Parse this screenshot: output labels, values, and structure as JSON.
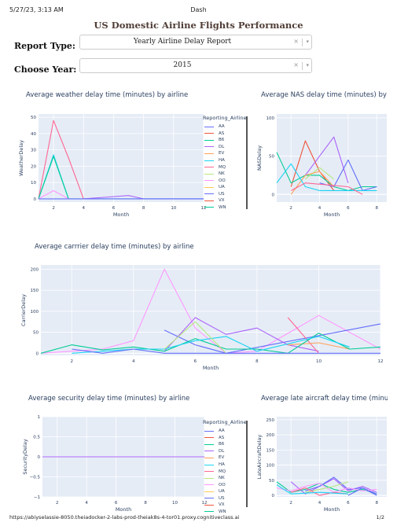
{
  "browser": {
    "timestamp": "5/27/23, 3:13 AM",
    "tab_title": "Dash",
    "footer_url": "https://abiyselassie-8050.theiadocker-2-labs-prod-theiak8s-4-tor01.proxy.cognitiveclass.ai",
    "page_indicator": "1/2"
  },
  "page": {
    "title": "US Domestic Airline Flights Performance",
    "report_type_label": "Report Type:",
    "report_type_value": "Yearly Airline Delay Report",
    "year_label": "Choose Year:",
    "year_value": "2015",
    "clear_glyph": "×",
    "caret_glyph": "▾"
  },
  "colors": {
    "plot_bg": "#e5ecf6",
    "grid": "#ffffff",
    "axis_text": "#2a3f5f",
    "title": "#503d36"
  },
  "legend": {
    "title": "Reporting_Airline",
    "airlines": [
      {
        "name": "AA",
        "color": "#636efa"
      },
      {
        "name": "AS",
        "color": "#ef553b"
      },
      {
        "name": "B6",
        "color": "#00cc96"
      },
      {
        "name": "DL",
        "color": "#ab63fa"
      },
      {
        "name": "EV",
        "color": "#ffa15a"
      },
      {
        "name": "HA",
        "color": "#19d3f3"
      },
      {
        "name": "MQ",
        "color": "#ff6692"
      },
      {
        "name": "NK",
        "color": "#b6e880"
      },
      {
        "name": "OO",
        "color": "#ff97ff"
      },
      {
        "name": "UA",
        "color": "#fecb52"
      },
      {
        "name": "US",
        "color": "#636efa"
      },
      {
        "name": "VX",
        "color": "#ef553b"
      },
      {
        "name": "WN",
        "color": "#00cc96"
      }
    ]
  },
  "chart_data": [
    {
      "type": "line",
      "title": "Average weather delay time (minutes) by airline",
      "xlabel": "Month",
      "ylabel": "WeatherDelay",
      "xlim": [
        1,
        12
      ],
      "ylim": [
        -2,
        52
      ],
      "xticks": [
        2,
        4,
        6,
        8,
        10,
        12
      ],
      "yticks": [
        0,
        10,
        20,
        30,
        40,
        50
      ],
      "series": [
        {
          "name": "MQ",
          "color": "#ff6692",
          "x": [
            1,
            2,
            3,
            4
          ],
          "y": [
            0,
            48,
            25,
            0
          ]
        },
        {
          "name": "HA",
          "color": "#19d3f3",
          "x": [
            1,
            2,
            3
          ],
          "y": [
            0,
            27,
            0
          ]
        },
        {
          "name": "B6",
          "color": "#00cc96",
          "x": [
            1,
            2,
            3,
            4,
            12
          ],
          "y": [
            0,
            26,
            0,
            0,
            0
          ]
        },
        {
          "name": "OO",
          "color": "#ff97ff",
          "x": [
            1,
            2,
            3
          ],
          "y": [
            0,
            5,
            0
          ]
        },
        {
          "name": "DL",
          "color": "#ab63fa",
          "x": [
            4,
            7,
            8,
            12
          ],
          "y": [
            0,
            2,
            0,
            0
          ]
        },
        {
          "name": "AA",
          "color": "#636efa",
          "x": [
            1,
            4,
            12
          ],
          "y": [
            0,
            0,
            0
          ]
        }
      ]
    },
    {
      "type": "line",
      "title": "Average NAS delay time (minutes) by airline",
      "xlabel": "Month",
      "ylabel": "NASDelay",
      "xlim": [
        1,
        8.7
      ],
      "ylim": [
        -10,
        105
      ],
      "xticks": [
        2,
        4,
        6,
        8
      ],
      "yticks": [
        0,
        50,
        100
      ],
      "series": [
        {
          "name": "AS",
          "color": "#ef553b",
          "x": [
            2,
            3,
            4,
            5
          ],
          "y": [
            10,
            70,
            30,
            5
          ]
        },
        {
          "name": "B6",
          "color": "#00cc96",
          "x": [
            1,
            2,
            3,
            4,
            5,
            6,
            7,
            8
          ],
          "y": [
            55,
            15,
            25,
            25,
            10,
            5,
            10,
            10
          ]
        },
        {
          "name": "DL",
          "color": "#ab63fa",
          "x": [
            3,
            4,
            5,
            6
          ],
          "y": [
            25,
            50,
            75,
            15
          ]
        },
        {
          "name": "NK",
          "color": "#b6e880",
          "x": [
            3,
            4,
            5
          ],
          "y": [
            20,
            35,
            20
          ]
        },
        {
          "name": "AA",
          "color": "#636efa",
          "x": [
            4,
            5,
            6,
            7,
            8
          ],
          "y": [
            15,
            10,
            45,
            5,
            10
          ]
        },
        {
          "name": "EV",
          "color": "#ffa15a",
          "x": [
            2,
            3,
            4,
            5
          ],
          "y": [
            0,
            25,
            30,
            10
          ]
        },
        {
          "name": "HA",
          "color": "#19d3f3",
          "x": [
            1,
            2,
            3,
            4,
            6,
            8
          ],
          "y": [
            15,
            40,
            10,
            5,
            5,
            5
          ]
        },
        {
          "name": "MQ",
          "color": "#ff6692",
          "x": [
            2,
            3,
            6,
            7
          ],
          "y": [
            5,
            15,
            10,
            0
          ]
        }
      ]
    },
    {
      "type": "line",
      "title": "Average carrrier delay time (minutes) by airline",
      "xlabel": "Month",
      "ylabel": "CarrierDelay",
      "xlim": [
        1,
        12
      ],
      "ylim": [
        -5,
        210
      ],
      "xticks": [
        2,
        4,
        6,
        8,
        10,
        12
      ],
      "yticks": [
        0,
        50,
        100,
        150,
        200
      ],
      "series": [
        {
          "name": "OO",
          "color": "#ff97ff",
          "x": [
            1,
            3,
            4,
            5,
            6,
            7,
            8,
            10,
            11,
            12
          ],
          "y": [
            0,
            10,
            30,
            200,
            60,
            0,
            5,
            90,
            50,
            10
          ]
        },
        {
          "name": "AA",
          "color": "#636efa",
          "x": [
            5,
            6,
            7,
            12
          ],
          "y": [
            55,
            20,
            0,
            70
          ]
        },
        {
          "name": "DL",
          "color": "#ab63fa",
          "x": [
            5,
            6,
            7,
            8,
            9,
            10
          ],
          "y": [
            5,
            85,
            45,
            60,
            20,
            5
          ]
        },
        {
          "name": "MQ",
          "color": "#ff6692",
          "x": [
            9,
            10
          ],
          "y": [
            85,
            0
          ]
        },
        {
          "name": "EV",
          "color": "#ffa15a",
          "x": [
            9,
            10,
            11
          ],
          "y": [
            20,
            25,
            10
          ]
        },
        {
          "name": "B6",
          "color": "#00cc96",
          "x": [
            1,
            2,
            3,
            4,
            5,
            6,
            7,
            8,
            9,
            10,
            11,
            12
          ],
          "y": [
            0,
            20,
            8,
            15,
            5,
            35,
            10,
            10,
            0,
            48,
            10,
            15
          ]
        },
        {
          "name": "HA",
          "color": "#19d3f3",
          "x": [
            2,
            3,
            4,
            5,
            6,
            7,
            8,
            10,
            11
          ],
          "y": [
            0,
            5,
            10,
            10,
            30,
            40,
            5,
            40,
            15
          ]
        },
        {
          "name": "NK",
          "color": "#b6e880",
          "x": [
            5,
            6,
            7
          ],
          "y": [
            10,
            75,
            0
          ]
        },
        {
          "name": "US",
          "color": "#636efa",
          "x": [
            2,
            3,
            4,
            5,
            9,
            12
          ],
          "y": [
            10,
            0,
            10,
            0,
            0,
            0
          ]
        }
      ]
    },
    {
      "type": "line",
      "title": "Average security delay time (minutes) by airline",
      "xlabel": "Month",
      "ylabel": "SecurityDelay",
      "xlim": [
        1,
        12
      ],
      "ylim": [
        -1,
        1
      ],
      "xticks": [
        2,
        4,
        6,
        8,
        10,
        12
      ],
      "yticks": [
        1,
        0.5,
        0,
        -0.5,
        -1
      ],
      "series": [
        {
          "name": "B6",
          "color": "#00cc96",
          "x": [
            1,
            4,
            7,
            12
          ],
          "y": [
            0,
            0,
            0,
            0
          ]
        },
        {
          "name": "AA",
          "color": "#636efa",
          "x": [
            1,
            12
          ],
          "y": [
            0,
            0
          ]
        },
        {
          "name": "DL",
          "color": "#ab63fa",
          "x": [
            1,
            12
          ],
          "y": [
            0,
            0
          ]
        }
      ]
    },
    {
      "type": "line",
      "title": "Average late aircraft delay time (minutes) b",
      "xlabel": "Month",
      "ylabel": "LateAircraftDelay",
      "xlim": [
        1,
        8.7
      ],
      "ylim": [
        -5,
        260
      ],
      "xticks": [
        2,
        4,
        6,
        8
      ],
      "yticks": [
        0,
        50,
        100,
        150,
        200,
        250
      ],
      "series": [
        {
          "name": "B6",
          "color": "#00cc96",
          "x": [
            1,
            2,
            3,
            4,
            5,
            6,
            7,
            8
          ],
          "y": [
            45,
            10,
            20,
            40,
            20,
            10,
            20,
            5
          ]
        },
        {
          "name": "DL",
          "color": "#ab63fa",
          "x": [
            2,
            3,
            4,
            5,
            6,
            7,
            8
          ],
          "y": [
            45,
            5,
            30,
            55,
            15,
            30,
            10
          ]
        },
        {
          "name": "AA",
          "color": "#636efa",
          "x": [
            3,
            4,
            5,
            6,
            7,
            8
          ],
          "y": [
            15,
            30,
            60,
            20,
            25,
            5
          ]
        },
        {
          "name": "OO",
          "color": "#ff97ff",
          "x": [
            1,
            2,
            3,
            4,
            5,
            6,
            7,
            8
          ],
          "y": [
            25,
            15,
            30,
            40,
            10,
            25,
            15,
            20
          ]
        },
        {
          "name": "NK",
          "color": "#b6e880",
          "x": [
            3,
            4,
            5,
            6
          ],
          "y": [
            10,
            20,
            30,
            45
          ]
        },
        {
          "name": "MQ",
          "color": "#ff6692",
          "x": [
            2,
            3,
            4,
            5,
            6
          ],
          "y": [
            10,
            25,
            0,
            10,
            5
          ]
        },
        {
          "name": "HA",
          "color": "#19d3f3",
          "x": [
            1,
            2,
            4,
            6
          ],
          "y": [
            35,
            5,
            10,
            5
          ]
        },
        {
          "name": "US",
          "color": "#636efa",
          "x": [
            6,
            7,
            8
          ],
          "y": [
            0,
            25,
            0
          ]
        }
      ]
    }
  ]
}
